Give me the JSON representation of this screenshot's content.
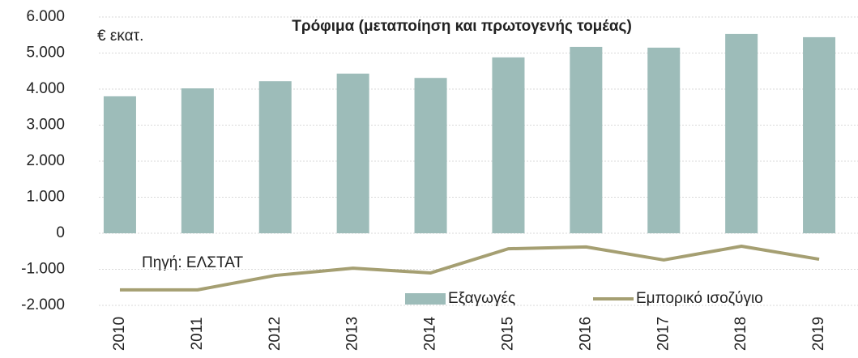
{
  "chart_data": {
    "type": "bar",
    "title": "Τρόφιμα (μεταποίηση και πρωτογενής τομέας)",
    "y_label": "€ εκατ.",
    "annotation": "Πηγή: ΕΛΣΤΑΤ",
    "categories": [
      "2010",
      "2011",
      "2012",
      "2013",
      "2014",
      "2015",
      "2016",
      "2017",
      "2018",
      "2019"
    ],
    "series": [
      {
        "name": "Εξαγωγές",
        "type": "bar",
        "color": "#9dbcb9",
        "values": [
          3800,
          4020,
          4220,
          4430,
          4310,
          4880,
          5170,
          5150,
          5530,
          5440
        ]
      },
      {
        "name": "Εμπορικό ισοζύγιο",
        "type": "line",
        "color": "#a59f72",
        "values": [
          -1570,
          -1570,
          -1170,
          -970,
          -1100,
          -430,
          -380,
          -740,
          -360,
          -720
        ]
      }
    ],
    "ylim": [
      -2000,
      6000
    ],
    "yticks": [
      {
        "value": -2000,
        "label": "-2.000"
      },
      {
        "value": -1000,
        "label": "-1.000"
      },
      0,
      {
        "value": 1000,
        "label": "1.000"
      },
      {
        "value": 2000,
        "label": "2.000"
      },
      {
        "value": 3000,
        "label": "3.000"
      },
      {
        "value": 4000,
        "label": "4.000"
      },
      {
        "value": 5000,
        "label": "5.000"
      },
      {
        "value": 6000,
        "label": "6.000"
      }
    ],
    "grid": true,
    "legend": "bottom"
  }
}
